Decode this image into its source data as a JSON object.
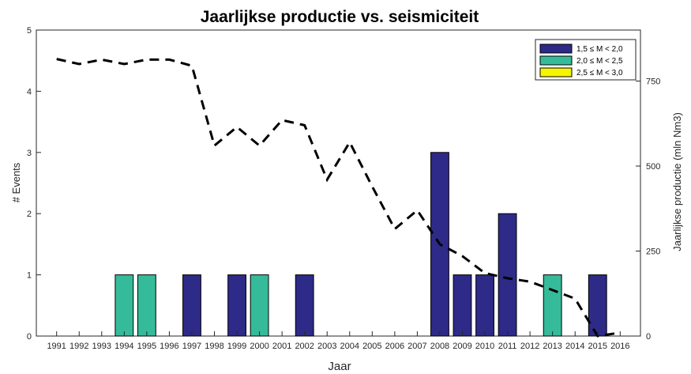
{
  "chart_data": {
    "type": "bar",
    "title": "Jaarlijkse productie vs. seismiciteit",
    "xlabel": "Jaar",
    "ylabel": "# Events",
    "ylabel_right": "Jaarlijkse productie (mln Nm3)",
    "categories": [
      "1991",
      "1992",
      "1993",
      "1994",
      "1995",
      "1996",
      "1997",
      "1998",
      "1999",
      "2000",
      "2001",
      "2002",
      "2003",
      "2004",
      "2005",
      "2006",
      "2007",
      "2008",
      "2009",
      "2010",
      "2011",
      "2012",
      "2013",
      "2014",
      "2015",
      "2016"
    ],
    "ylim": [
      0,
      5
    ],
    "yticks": [
      "0",
      "1",
      "2",
      "3",
      "4",
      "5"
    ],
    "ylim_right": [
      0,
      900
    ],
    "yticks_right": [
      "0",
      "250",
      "500",
      "750"
    ],
    "series": [
      {
        "name": "1,5 ≤ M < 2,0",
        "color": "#2e2a87",
        "values": [
          0,
          0,
          0,
          0,
          0,
          0,
          1,
          0,
          1,
          0,
          0,
          1,
          0,
          0,
          0,
          0,
          0,
          3,
          1,
          1,
          2,
          0,
          0,
          0,
          1,
          0
        ]
      },
      {
        "name": "2,0 ≤ M < 2,5",
        "color": "#36bb9a",
        "values": [
          0,
          0,
          0,
          1,
          1,
          0,
          0,
          0,
          0,
          1,
          0,
          0,
          0,
          0,
          0,
          0,
          0,
          0,
          0,
          0,
          0,
          0,
          1,
          0,
          0,
          0
        ]
      },
      {
        "name": "2,5 ≤ M < 3,0",
        "color": "#f5f500",
        "values": [
          0,
          0,
          0,
          0,
          0,
          0,
          0,
          0,
          0,
          0,
          0,
          0,
          0,
          0,
          0,
          0,
          0,
          0,
          0,
          0,
          0,
          0,
          0,
          0,
          0,
          0
        ]
      }
    ],
    "line": {
      "axis": "right",
      "style": "dashed",
      "color": "#000000",
      "values": [
        815,
        800,
        813,
        800,
        813,
        813,
        795,
        560,
        615,
        560,
        635,
        620,
        460,
        570,
        440,
        315,
        370,
        270,
        235,
        185,
        170,
        160,
        135,
        110,
        0,
        10
      ]
    },
    "legend_position": "top-right",
    "grid": false
  }
}
